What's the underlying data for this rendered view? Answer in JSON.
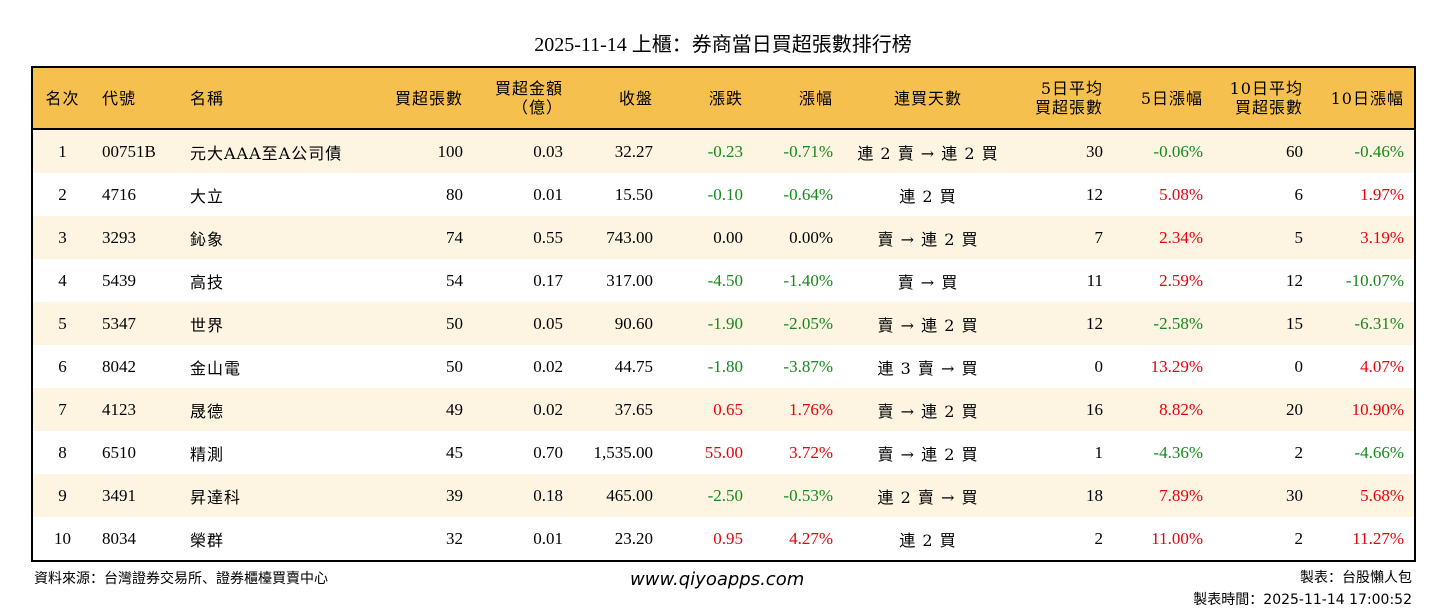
{
  "title": "2025-11-14 上櫃：券商當日買超張數排行榜",
  "colors": {
    "header_bg": "#f6c04f",
    "row_alt_bg": "#fdf5e2",
    "up": "#e8000b",
    "down": "#13891a"
  },
  "columns": [
    "名次",
    "代號",
    "名稱",
    "買超張數",
    "買超金額\n（億）",
    "收盤",
    "漲跌",
    "漲幅",
    "連買天數",
    "5日平均\n買超張數",
    "5日漲幅",
    "10日平均\n買超張數",
    "10日漲幅"
  ],
  "rows": [
    [
      "1",
      "00751B",
      "元大AAA至A公司債",
      "100",
      "0.03",
      "32.27",
      "-0.23",
      "-0.71%",
      "連 2 賣 → 連 2 買",
      "30",
      "-0.06%",
      "60",
      "-0.46%"
    ],
    [
      "2",
      "4716",
      "大立",
      "80",
      "0.01",
      "15.50",
      "-0.10",
      "-0.64%",
      "連 2 買",
      "12",
      "5.08%",
      "6",
      "1.97%"
    ],
    [
      "3",
      "3293",
      "鈊象",
      "74",
      "0.55",
      "743.00",
      "0.00",
      "0.00%",
      "賣 → 連 2 買",
      "7",
      "2.34%",
      "5",
      "3.19%"
    ],
    [
      "4",
      "5439",
      "高技",
      "54",
      "0.17",
      "317.00",
      "-4.50",
      "-1.40%",
      "賣 → 買",
      "11",
      "2.59%",
      "12",
      "-10.07%"
    ],
    [
      "5",
      "5347",
      "世界",
      "50",
      "0.05",
      "90.60",
      "-1.90",
      "-2.05%",
      "賣 → 連 2 買",
      "12",
      "-2.58%",
      "15",
      "-6.31%"
    ],
    [
      "6",
      "8042",
      "金山電",
      "50",
      "0.02",
      "44.75",
      "-1.80",
      "-3.87%",
      "連 3 賣 → 買",
      "0",
      "13.29%",
      "0",
      "4.07%"
    ],
    [
      "7",
      "4123",
      "晟德",
      "49",
      "0.02",
      "37.65",
      "0.65",
      "1.76%",
      "賣 → 連 2 買",
      "16",
      "8.82%",
      "20",
      "10.90%"
    ],
    [
      "8",
      "6510",
      "精測",
      "45",
      "0.70",
      "1,535.00",
      "55.00",
      "3.72%",
      "賣 → 連 2 買",
      "1",
      "-4.36%",
      "2",
      "-4.66%"
    ],
    [
      "9",
      "3491",
      "昇達科",
      "39",
      "0.18",
      "465.00",
      "-2.50",
      "-0.53%",
      "連 2 賣 → 買",
      "18",
      "7.89%",
      "30",
      "5.68%"
    ],
    [
      "10",
      "8034",
      "榮群",
      "32",
      "0.01",
      "23.20",
      "0.95",
      "4.27%",
      "連 2 買",
      "2",
      "11.00%",
      "2",
      "11.27%"
    ]
  ],
  "footer": {
    "source": "資料來源：台灣證券交易所、證券櫃檯買賣中心",
    "website": "www.qiyoapps.com",
    "maker": "製表：台股懶人包",
    "time": "製表時間：2025-11-14 17:00:52"
  }
}
